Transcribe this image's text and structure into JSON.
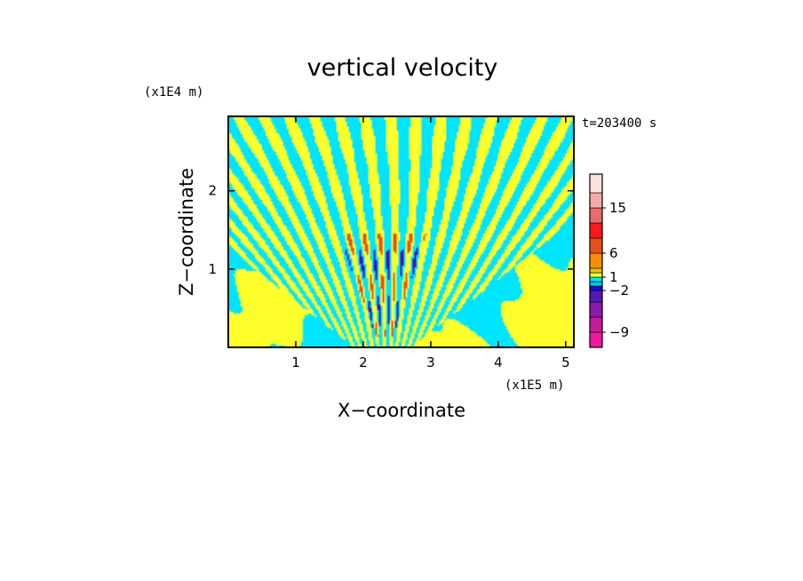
{
  "chart_data": {
    "type": "heatmap",
    "title": "vertical velocity",
    "xlabel": "X−coordinate",
    "ylabel": "Z−coordinate",
    "x_multiplier_label": "(x1E5 m)",
    "y_multiplier_label": "(x1E4 m)",
    "time_label": "t=203400 s",
    "xlim": [
      0,
      5.12
    ],
    "ylim": [
      0,
      2.95
    ],
    "x_ticks": [
      "1",
      "2",
      "3",
      "4",
      "5"
    ],
    "y_ticks": [
      "1",
      "2"
    ],
    "colorbar": {
      "levels": [
        -12,
        -9,
        -6,
        -3,
        -2,
        -1,
        0,
        1,
        2,
        3,
        6,
        9,
        12,
        15,
        18,
        21
      ],
      "colors": [
        "#f0189c",
        "#c81a9c",
        "#8b1aa8",
        "#5418b8",
        "#1010d0",
        "#00c8e6",
        "#00e5ff",
        "#ffff2b",
        "#e6c800",
        "#ff8c00",
        "#e8501a",
        "#ff1a1a",
        "#ee6a6a",
        "#f5aaaa",
        "#fde0da"
      ],
      "tick_labels": [
        {
          "text": "15",
          "value": 15
        },
        {
          "text": "6",
          "value": 6
        },
        {
          "text": "1",
          "value": 1
        },
        {
          "text": "−2",
          "value": -2
        },
        {
          "text": "−9",
          "value": -9
        }
      ]
    },
    "field_colors": {
      "positive": "#ffff2b",
      "negative": "#00e5ff",
      "strong_positive": "#e8501a",
      "strong_negative": "#3a10c0"
    }
  }
}
